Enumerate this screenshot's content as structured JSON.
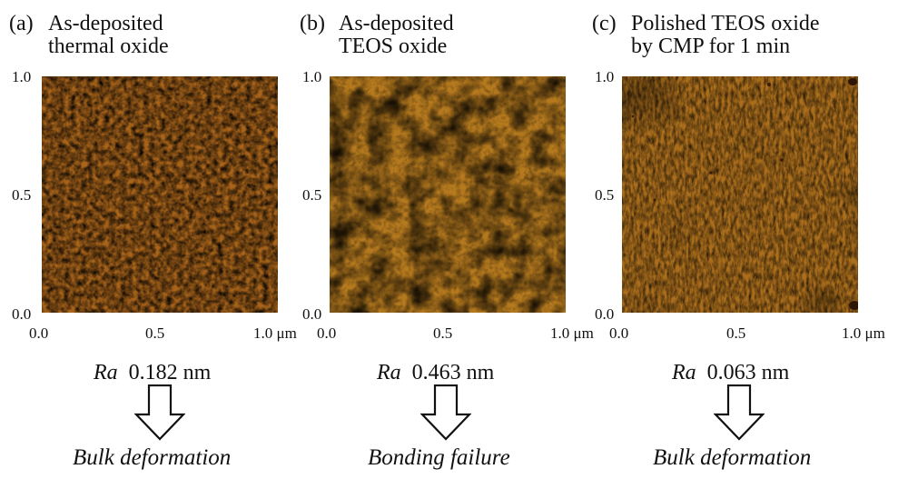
{
  "panels": [
    {
      "label": "(a)",
      "title": "As-deposited\nthermal oxide",
      "y_ticks": [
        "1.0",
        "0.5",
        "0.0"
      ],
      "x_ticks": [
        "0.0",
        "0.5",
        "1.0 μm"
      ],
      "ra_symbol": "Ra",
      "ra_value": "0.182 nm",
      "result": "Bulk deformation",
      "image_colors": {
        "base": "#a9641a",
        "light": "#d6bb38",
        "dark": "#7a3f10"
      }
    },
    {
      "label": "(b)",
      "title": "As-deposited\nTEOS oxide",
      "y_ticks": [
        "1.0",
        "0.5",
        "0.0"
      ],
      "x_ticks": [
        "0.0",
        "0.5",
        "1.0 μm"
      ],
      "ra_symbol": "Ra",
      "ra_value": "0.463 nm",
      "result": "Bonding failure",
      "image_colors": {
        "base": "#b67a1e",
        "light": "#e2d24a",
        "dark": "#7d4412"
      }
    },
    {
      "label": "(c)",
      "title": "Polished TEOS oxide\nby CMP for 1 min",
      "y_ticks": [
        "1.0",
        "0.5",
        "0.0"
      ],
      "x_ticks": [
        "0.0",
        "0.5",
        "1.0 μm"
      ],
      "ra_symbol": "Ra",
      "ra_value": "0.063 nm",
      "result": "Bulk deformation",
      "image_colors": {
        "base": "#ab6e1c",
        "light": "#d1b43a",
        "dark": "#6e3a0e"
      }
    }
  ]
}
